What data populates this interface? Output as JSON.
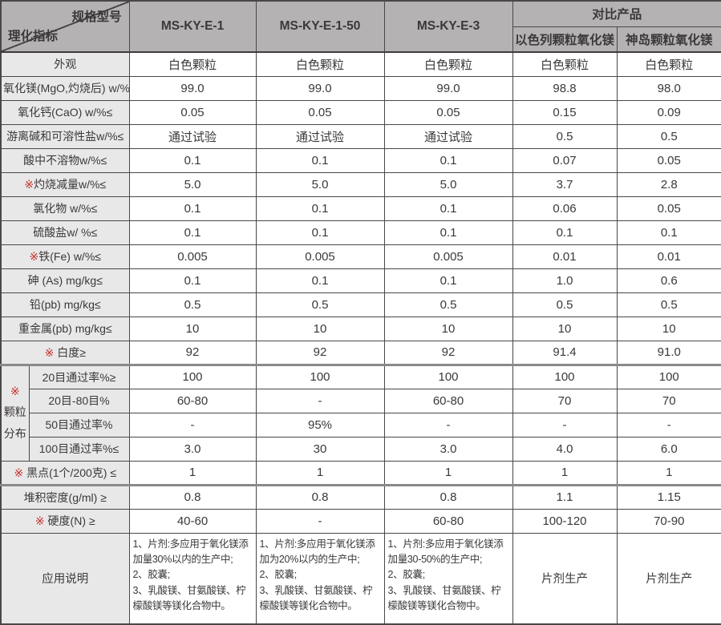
{
  "colors": {
    "header_bg": "#b4b2b2",
    "label_bg": "#e9e8e8",
    "border": "#4a4747",
    "text": "#3b3838",
    "mark_red": "#c4302e",
    "thick_line": "#8b8989"
  },
  "header": {
    "corner_top": "规格型号",
    "corner_bottom": "理化指标",
    "products": [
      "MS-KY-E-1",
      "MS-KY-E-1-50",
      "MS-KY-E-3"
    ],
    "comparison_group": "对比产品",
    "comparisons": [
      "以色列颗粒氧化镁",
      "神岛颗粒氧化镁"
    ]
  },
  "rows_top": [
    {
      "mark": "",
      "label": "外观",
      "values": [
        "白色颗粒",
        "白色颗粒",
        "白色颗粒",
        "白色颗粒",
        "白色颗粒"
      ]
    },
    {
      "mark": "",
      "label": "氧化镁(MgO,灼烧后) w/%≥",
      "values": [
        "99.0",
        "99.0",
        "99.0",
        "98.8",
        "98.0"
      ]
    },
    {
      "mark": "",
      "label": "氧化钙(CaO) w/%≤",
      "values": [
        "0.05",
        "0.05",
        "0.05",
        "0.15",
        "0.09"
      ]
    },
    {
      "mark": "",
      "label": "游离碱和可溶性盐w/%≤",
      "values": [
        "通过试验",
        "通过试验",
        "通过试验",
        "0.5",
        "0.5"
      ]
    },
    {
      "mark": "",
      "label": "酸中不溶物w/%≤",
      "values": [
        "0.1",
        "0.1",
        "0.1",
        "0.07",
        "0.05"
      ]
    },
    {
      "mark": "※",
      "label": "灼烧减量w/%≤",
      "values": [
        "5.0",
        "5.0",
        "5.0",
        "3.7",
        "2.8"
      ]
    },
    {
      "mark": "",
      "label": "氯化物 w/%≤",
      "values": [
        "0.1",
        "0.1",
        "0.1",
        "0.06",
        "0.05"
      ]
    },
    {
      "mark": "",
      "label": "硫酸盐w/ %≤",
      "values": [
        "0.1",
        "0.1",
        "0.1",
        "0.1",
        "0.1"
      ]
    },
    {
      "mark": "※",
      "label": "铁(Fe) w/%≤",
      "values": [
        "0.005",
        "0.005",
        "0.005",
        "0.01",
        "0.01"
      ]
    },
    {
      "mark": "",
      "label": "砷 (As) mg/kg≤",
      "values": [
        "0.1",
        "0.1",
        "0.1",
        "1.0",
        "0.6"
      ]
    },
    {
      "mark": "",
      "label": "铅(pb) mg/kg≤",
      "values": [
        "0.5",
        "0.5",
        "0.5",
        "0.5",
        "0.5"
      ]
    },
    {
      "mark": "",
      "label": "重金属(pb) mg/kg≤",
      "values": [
        "10",
        "10",
        "10",
        "10",
        "10"
      ]
    },
    {
      "mark": "※",
      "label": " 白度≥",
      "values": [
        "92",
        "92",
        "92",
        "91.4",
        "91.0"
      ],
      "thick_bottom": true
    }
  ],
  "granule_group": {
    "mark": "※",
    "label_lines": [
      "颗粒",
      "分布"
    ],
    "rows": [
      {
        "label": "20目通过率%≥",
        "values": [
          "100",
          "100",
          "100",
          "100",
          "100"
        ]
      },
      {
        "label": "20目-80目%",
        "values": [
          "60-80",
          "-",
          "60-80",
          "70",
          "70"
        ]
      },
      {
        "label": "50目通过率%",
        "values": [
          "-",
          "95%",
          "-",
          "-",
          "-"
        ]
      },
      {
        "label": "100目通过率%≤",
        "values": [
          "3.0",
          "30",
          "3.0",
          "4.0",
          "6.0"
        ]
      }
    ]
  },
  "rows_bottom": [
    {
      "mark": "※",
      "label": " 黑点(1个/200克) ≤",
      "values": [
        "1",
        "1",
        "1",
        "1",
        "1"
      ],
      "thick_bottom": true
    },
    {
      "mark": "",
      "label": "堆积密度(g/ml) ≥",
      "values": [
        "0.8",
        "0.8",
        "0.8",
        "1.1",
        "1.15"
      ]
    },
    {
      "mark": "※",
      "label": " 硬度(N) ≥",
      "values": [
        "40-60",
        "-",
        "60-80",
        "100-120",
        "70-90"
      ]
    }
  ],
  "application": {
    "label": "应用说明",
    "notes": [
      "1、片剂:多应用于氧化镁添加量30%以内的生产中;\n2、胶囊;\n3、乳酸镁、甘氨酸镁、柠檬酸镁等镁化合物中。",
      "1、片剂:多应用于氧化镁添加为20%以内的生产中;\n2、胶囊;\n3、乳酸镁、甘氨酸镁、柠檬酸镁等镁化合物中。",
      "1、片剂:多应用于氧化镁添加量30-50%的生产中;\n2、胶囊;\n3、乳酸镁、甘氨酸镁、柠檬酸镁等镁化合物中。"
    ],
    "comparison_values": [
      "片剂生产",
      "片剂生产"
    ]
  }
}
